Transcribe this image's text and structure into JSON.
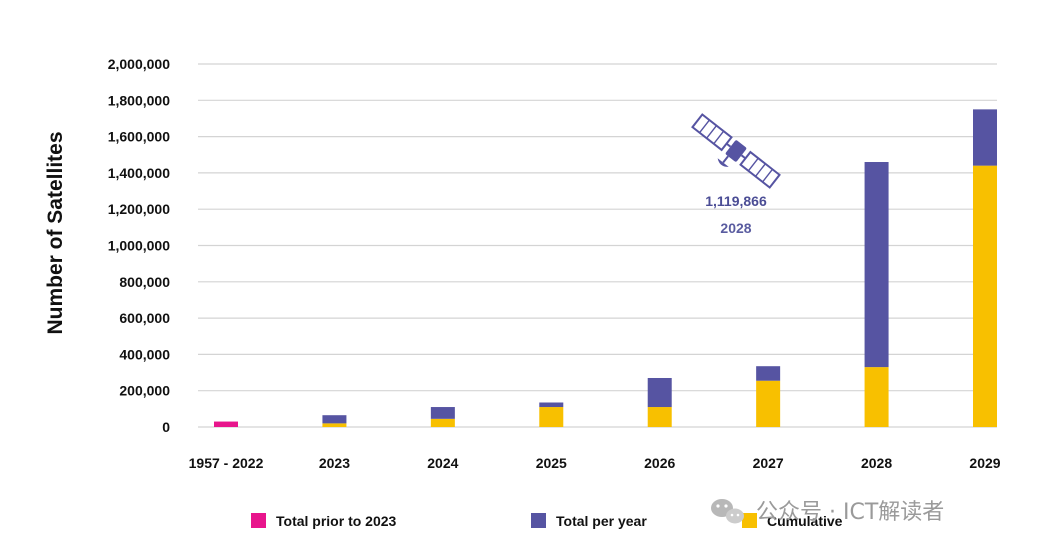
{
  "chart_data": {
    "type": "bar",
    "stacked": true,
    "title": "",
    "xlabel": "",
    "ylabel": "Number of Satellites",
    "ylim": [
      0,
      2000000
    ],
    "yticks": [
      0,
      200000,
      400000,
      600000,
      800000,
      1000000,
      1200000,
      1400000,
      1600000,
      1800000,
      2000000
    ],
    "ytick_labels": [
      "0",
      "200,000",
      "400,000",
      "600,000",
      "800,000",
      "1,000,000",
      "1,200,000",
      "1,400,000",
      "1,600,000",
      "1,800,000",
      "2,000,000"
    ],
    "categories": [
      "1957 - 2022",
      "2023",
      "2024",
      "2025",
      "2026",
      "2027",
      "2028",
      "2029"
    ],
    "series": [
      {
        "name": "Total prior to 2023",
        "color": "#e8158c",
        "values": [
          30000,
          0,
          0,
          0,
          0,
          0,
          0,
          0
        ]
      },
      {
        "name": "Cumulative",
        "color": "#f8c000",
        "values": [
          0,
          20000,
          45000,
          110000,
          110000,
          255000,
          330000,
          1440000
        ]
      },
      {
        "name": "Total per year",
        "color": "#5654a2",
        "values": [
          0,
          45000,
          65000,
          25000,
          160000,
          80000,
          1130000,
          310000
        ]
      }
    ],
    "legend_order": [
      "Total prior to 2023",
      "Total per year",
      "Cumulative"
    ],
    "legend_position": "bottom",
    "grid": true,
    "annotation": {
      "value": "1,119,866",
      "year": "2028"
    }
  },
  "watermark": {
    "text": "公众号 · ICT解读者"
  }
}
